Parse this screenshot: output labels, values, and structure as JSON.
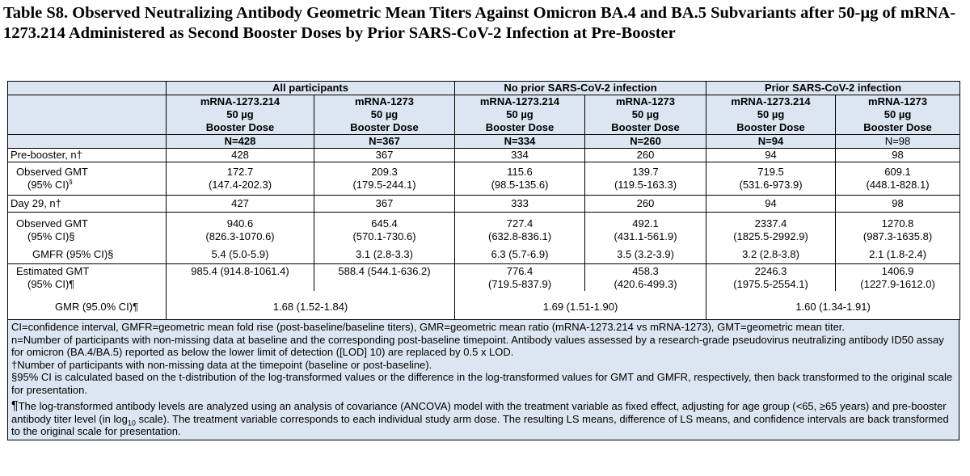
{
  "title": "Table S8.  Observed Neutralizing Antibody Geometric Mean Titers Against Omicron BA.4 and BA.5 Subvariants after 50-µg of mRNA-1273.214 Administered as Second Booster Doses by Prior SARS-CoV-2 Infection at Pre-Booster",
  "groups": [
    "All participants",
    "No prior SARS-CoV-2 infection",
    "Prior SARS-CoV-2 infection"
  ],
  "arms": [
    {
      "name": "mRNA-1273.214",
      "dose": "50 µg",
      "type": "Booster Dose",
      "n": "N=428"
    },
    {
      "name": "mRNA-1273",
      "dose": "50 µg",
      "type": "Booster Dose",
      "n": "N=367"
    },
    {
      "name": "mRNA-1273.214",
      "dose": "50 µg",
      "type": "Booster Dose",
      "n": "N=334"
    },
    {
      "name": "mRNA-1273",
      "dose": "50 µg",
      "type": "Booster Dose",
      "n": "N=260"
    },
    {
      "name": "mRNA-1273.214",
      "dose": "50 µg",
      "type": "Booster Dose",
      "n": "N=94"
    },
    {
      "name": "mRNA-1273",
      "dose": "50 µg",
      "type": "Booster Dose",
      "n": "N=98"
    }
  ],
  "rows": {
    "pre_n": {
      "label": "Pre-booster, n†",
      "values": [
        "428",
        "367",
        "334",
        "260",
        "94",
        "98"
      ]
    },
    "pre_gmt": {
      "label1": "Observed GMT",
      "label2": "(95% CI)",
      "label2_mark": "§",
      "values": [
        "172.7",
        "209.3",
        "115.6",
        "139.7",
        "719.5",
        "609.1"
      ],
      "ci": [
        "(147.4-202.3)",
        "(179.5-244.1)",
        "(98.5-135.6)",
        "(119.5-163.3)",
        "(531.6-973.9)",
        "(448.1-828.1)"
      ]
    },
    "d29_n": {
      "label": "Day 29, n†",
      "values": [
        "427",
        "367",
        "333",
        "260",
        "94",
        "98"
      ]
    },
    "d29_gmt": {
      "label1": "Observed GMT",
      "label2": "(95% CI)§",
      "values": [
        "940.6",
        "645.4",
        "727.4",
        "492.1",
        "2337.4",
        "1270.8"
      ],
      "ci": [
        "(826.3-1070.6)",
        "(570.1-730.6)",
        "(632.8-836.1)",
        "(431.1-561.9)",
        "(1825.5-2992.9)",
        "(987.3-1635.8)"
      ]
    },
    "gmfr": {
      "label": "GMFR (95% CI)§",
      "values": [
        "5.4 (5.0-5.9)",
        "3.1 (2.8-3.3)",
        "6.3 (5.7-6.9)",
        "3.5 (3.2-3.9)",
        "3.2 (2.8-3.8)",
        "2.1 (1.8-2.4)"
      ]
    },
    "est_gmt": {
      "label1": "Estimated GMT",
      "label2": "(95% CI)¶",
      "inline": [
        "985.4 (914.8-1061.4)",
        "588.4 (544.1-636.2)"
      ],
      "values": [
        "776.4",
        "458.3",
        "2246.3",
        "1406.9"
      ],
      "ci": [
        "(719.5-837.9)",
        "(420.6-499.3)",
        "(1975.5-2554.1)",
        "(1227.9-1612.0)"
      ]
    },
    "gmr": {
      "label": "GMR (95.0% CI)¶",
      "values": [
        "1.68 (1.52-1.84)",
        "1.69 (1.51-1.90)",
        "1.60 (1.34-1.91)"
      ]
    }
  },
  "footnotes": {
    "f1": "CI=confidence interval, GMFR=geometric mean fold rise (post-baseline/baseline titers), GMR=geometric mean ratio (mRNA-1273.214 vs mRNA-1273), GMT=geometric mean titer.",
    "f2": "n=Number of participants with non-missing data at baseline and the corresponding post-baseline timepoint. Antibody values assessed by a research-grade pseudovirus neutralizing antibody ID50 assay for omicron (BA.4/BA.5) reported as below the lower limit of detection ([LOD] 10) are replaced by 0.5 x LOD.",
    "f3": "†Number of participants with non-missing data at the timepoint (baseline or post-baseline).",
    "f4": "§95% CI is calculated based on the t-distribution of the log-transformed values or the difference in the log-transformed values for GMT and GMFR, respectively, then back transformed to the original scale for presentation.",
    "f5_mark": "¶",
    "f5_a": "The log-transformed antibody levels are analyzed using an analysis of covariance (ANCOVA) model with the treatment variable as fixed effect, adjusting for age group (<65, ≥65 years) and pre-booster antibody titer level (in log",
    "f5_sub": "10",
    "f5_b": " scale). The treatment variable corresponds to each individual study arm dose. The resulting LS means, difference of LS means, and confidence intervals are back transformed to the original scale for presentation."
  }
}
